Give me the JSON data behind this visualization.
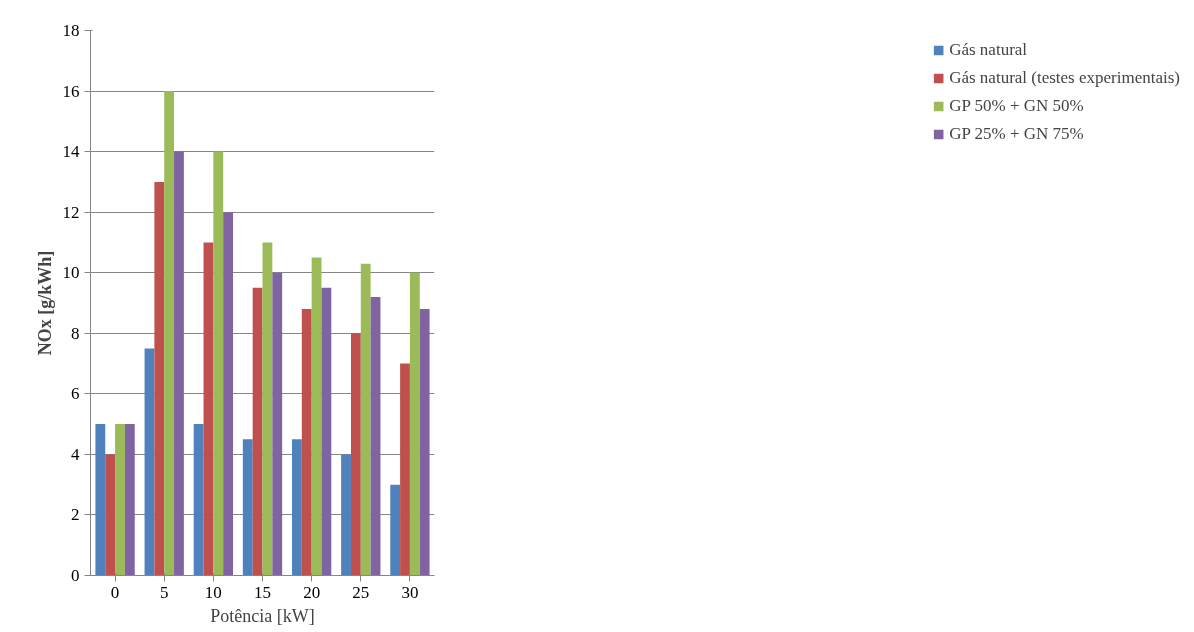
{
  "chart_data": {
    "type": "bar",
    "xlabel": "Potência [kW]",
    "ylabel": "NOx [g/kWh]",
    "categories": [
      "0",
      "5",
      "10",
      "15",
      "20",
      "25",
      "30"
    ],
    "series": [
      {
        "name": "Gás natural",
        "color": "#4f81bd",
        "values": [
          5,
          7.5,
          5,
          4.5,
          4.5,
          4,
          3
        ]
      },
      {
        "name": "Gás natural (testes experimentais)",
        "color": "#c0504d",
        "values": [
          4,
          13,
          11,
          9.5,
          8.8,
          8,
          7
        ]
      },
      {
        "name": "GP 50% + GN 50%",
        "color": "#9bbb59",
        "values": [
          5,
          16,
          14,
          11,
          10.5,
          10.3,
          10
        ]
      },
      {
        "name": "GP 25% + GN 75%",
        "color": "#8064a2",
        "values": [
          5,
          14,
          12,
          10,
          9.5,
          9.2,
          8.8
        ]
      }
    ],
    "ylim": [
      0,
      18
    ],
    "yticks": [
      0,
      2,
      4,
      6,
      8,
      10,
      12,
      14,
      16,
      18
    ],
    "grid": "y",
    "legend": "right"
  }
}
